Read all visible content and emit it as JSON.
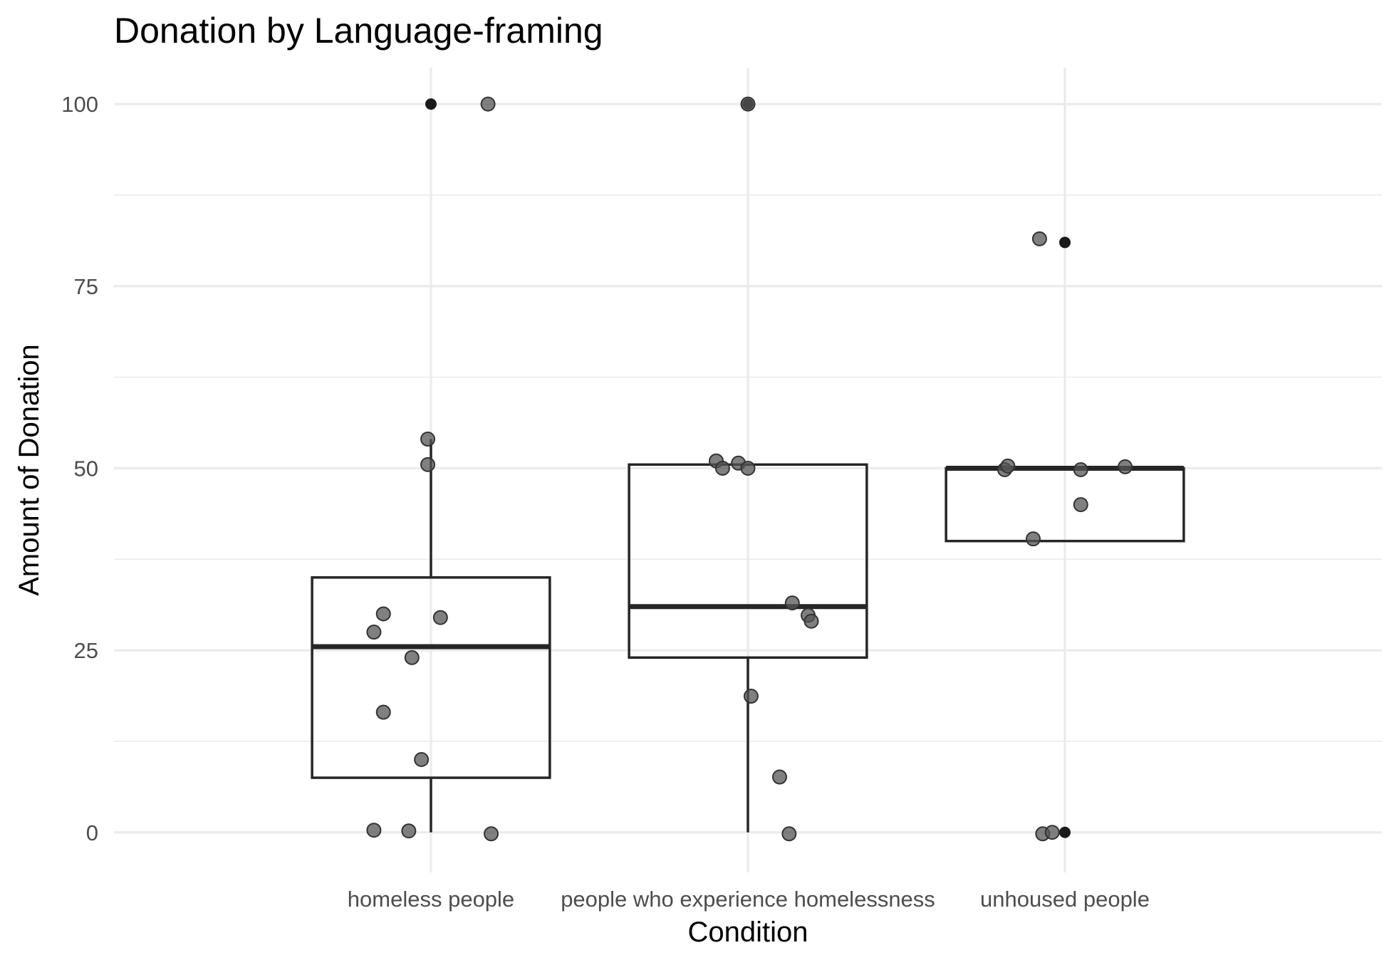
{
  "chart_data": {
    "type": "boxplot",
    "title": "Donation by Language-framing",
    "xlabel": "Condition",
    "ylabel": "Amount of Donation",
    "ylim": [
      -5.5,
      105
    ],
    "yticks": [
      0,
      25,
      50,
      75,
      100
    ],
    "grid": true,
    "categories": [
      "homeless people",
      "people who experience homelessness",
      "unhoused people"
    ],
    "boxes": [
      {
        "category": "homeless people",
        "q1": 7.5,
        "median": 25.5,
        "q3": 35,
        "whisker_low": 0,
        "whisker_high": 54,
        "outliers": [
          100
        ]
      },
      {
        "category": "people who experience homelessness",
        "q1": 24,
        "median": 31,
        "q3": 50.5,
        "whisker_low": 0,
        "whisker_high": 50.5,
        "outliers": [
          100
        ]
      },
      {
        "category": "unhoused people",
        "q1": 40,
        "median": 50,
        "q3": 50,
        "whisker_low": 40,
        "whisker_high": 50,
        "outliers": [
          81,
          0
        ]
      }
    ],
    "jitter_points": [
      {
        "category": "homeless people",
        "offset": 0.18,
        "y": 100
      },
      {
        "category": "homeless people",
        "offset": -0.01,
        "y": 54
      },
      {
        "category": "homeless people",
        "offset": -0.01,
        "y": 50.5
      },
      {
        "category": "homeless people",
        "offset": -0.15,
        "y": 30
      },
      {
        "category": "homeless people",
        "offset": 0.03,
        "y": 29.5
      },
      {
        "category": "homeless people",
        "offset": -0.18,
        "y": 27.5
      },
      {
        "category": "homeless people",
        "offset": -0.06,
        "y": 24
      },
      {
        "category": "homeless people",
        "offset": -0.15,
        "y": 16.5
      },
      {
        "category": "homeless people",
        "offset": -0.03,
        "y": 10
      },
      {
        "category": "homeless people",
        "offset": -0.18,
        "y": 0.3
      },
      {
        "category": "homeless people",
        "offset": -0.07,
        "y": 0.2
      },
      {
        "category": "homeless people",
        "offset": 0.19,
        "y": -0.2
      },
      {
        "category": "people who experience homelessness",
        "offset": 0.0,
        "y": 100
      },
      {
        "category": "people who experience homelessness",
        "offset": -0.1,
        "y": 51
      },
      {
        "category": "people who experience homelessness",
        "offset": -0.08,
        "y": 50
      },
      {
        "category": "people who experience homelessness",
        "offset": -0.03,
        "y": 50.7
      },
      {
        "category": "people who experience homelessness",
        "offset": 0.0,
        "y": 50
      },
      {
        "category": "people who experience homelessness",
        "offset": 0.14,
        "y": 31.5
      },
      {
        "category": "people who experience homelessness",
        "offset": 0.19,
        "y": 29.8
      },
      {
        "category": "people who experience homelessness",
        "offset": 0.2,
        "y": 29
      },
      {
        "category": "people who experience homelessness",
        "offset": 0.01,
        "y": 18.7
      },
      {
        "category": "people who experience homelessness",
        "offset": 0.1,
        "y": 7.6
      },
      {
        "category": "people who experience homelessness",
        "offset": 0.13,
        "y": -0.2
      },
      {
        "category": "unhoused people",
        "offset": -0.08,
        "y": 81.5
      },
      {
        "category": "unhoused people",
        "offset": -0.19,
        "y": 49.8
      },
      {
        "category": "unhoused people",
        "offset": -0.18,
        "y": 50.3
      },
      {
        "category": "unhoused people",
        "offset": 0.05,
        "y": 49.8
      },
      {
        "category": "unhoused people",
        "offset": 0.19,
        "y": 50.2
      },
      {
        "category": "unhoused people",
        "offset": 0.05,
        "y": 45
      },
      {
        "category": "unhoused people",
        "offset": -0.1,
        "y": 40.3
      },
      {
        "category": "unhoused people",
        "offset": -0.07,
        "y": -0.2
      },
      {
        "category": "unhoused people",
        "offset": -0.04,
        "y": 0
      }
    ],
    "colors": {
      "grid": "#ebebeb",
      "box": "#262626",
      "outlier": "#1a1a1a",
      "point": "#555555",
      "tick_text": "#4d4d4d",
      "label_text": "#000000"
    }
  }
}
